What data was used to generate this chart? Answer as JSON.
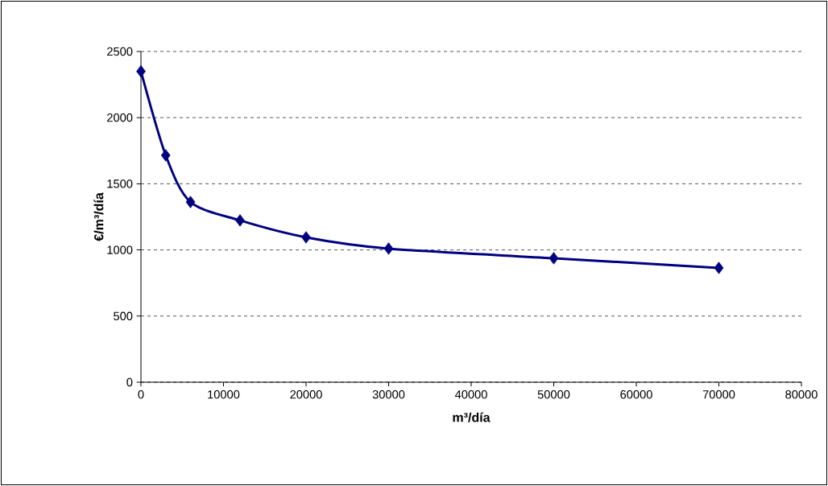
{
  "chart_data": {
    "type": "line",
    "xlabel": "m³/día",
    "ylabel": "€/m³/día",
    "x": [
      0,
      3000,
      6000,
      12000,
      20000,
      30000,
      50000,
      70000
    ],
    "series": [
      {
        "color": "#000080",
        "values": [
          2350,
          1715,
          1362,
          1223,
          1095,
          1010,
          937,
          864
        ]
      }
    ],
    "xlim": [
      0,
      80000
    ],
    "xticks": [
      0,
      10000,
      20000,
      30000,
      40000,
      50000,
      60000,
      70000,
      80000
    ],
    "ylim": [
      0,
      2500
    ],
    "yticks": [
      0,
      500,
      1000,
      1500,
      2000,
      2500
    ],
    "grid": "y",
    "marker": "diamond",
    "line_style": "solid"
  }
}
